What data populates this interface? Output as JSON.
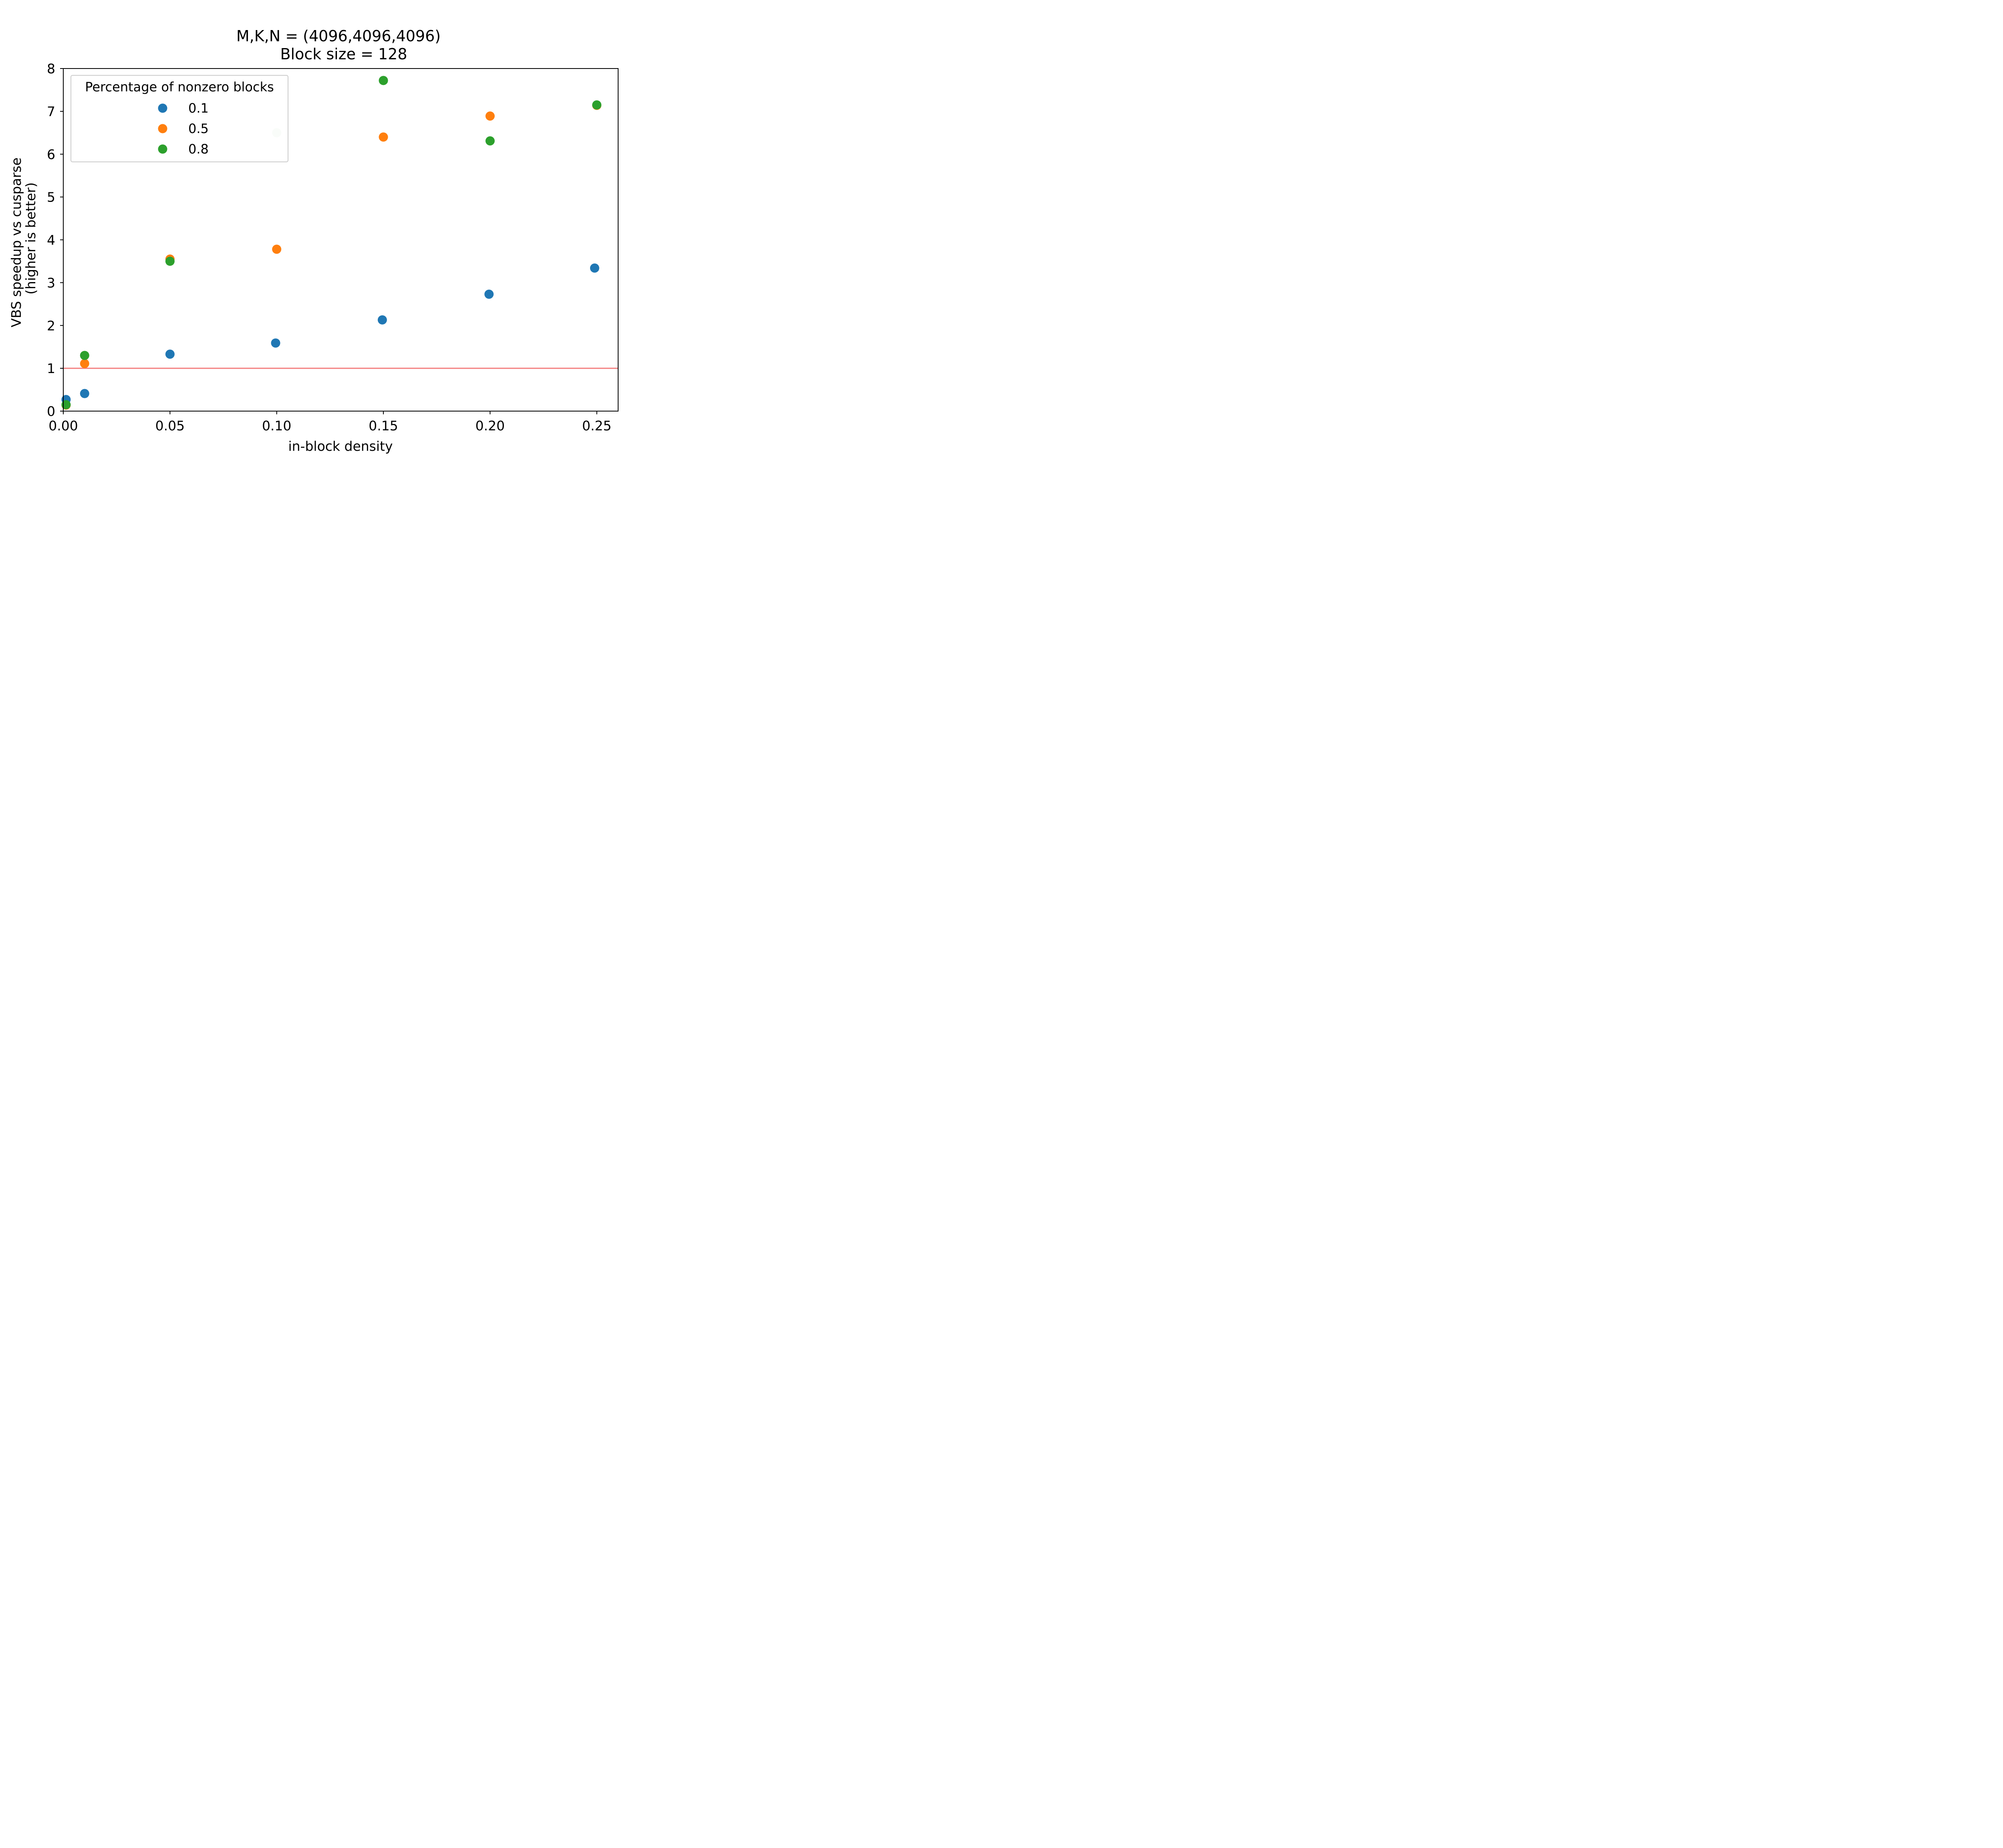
{
  "chart_data": {
    "type": "scatter",
    "title": "M,K,N = (4096,4096,4096)",
    "subtitle": "Block size = 128",
    "xlabel": "in-block density",
    "ylabel": "VBS speedup vs cusparse",
    "ylabel2": "(higher is better)",
    "xlim": [
      0.0,
      0.26
    ],
    "ylim": [
      0,
      8
    ],
    "xticks": [
      "0.00",
      "0.05",
      "0.10",
      "0.15",
      "0.20",
      "0.25"
    ],
    "xtick_values": [
      0.0,
      0.05,
      0.1,
      0.15,
      0.2,
      0.25
    ],
    "yticks": [
      "0",
      "1",
      "2",
      "3",
      "4",
      "5",
      "6",
      "7",
      "8"
    ],
    "ytick_values": [
      0,
      1,
      2,
      3,
      4,
      5,
      6,
      7,
      8
    ],
    "grid": false,
    "legend": {
      "title": "Percentage of nonzero blocks",
      "placement": "top-left"
    },
    "reference_line": {
      "y": 1,
      "color": "#f47e7e"
    },
    "series": [
      {
        "name": "0.1",
        "color": "#1f77b4",
        "points": [
          {
            "x": 0.0013,
            "y": 0.27
          },
          {
            "x": 0.01,
            "y": 0.41
          },
          {
            "x": 0.05,
            "y": 1.33
          },
          {
            "x": 0.0995,
            "y": 1.59
          },
          {
            "x": 0.1495,
            "y": 2.13
          },
          {
            "x": 0.1995,
            "y": 2.73
          },
          {
            "x": 0.249,
            "y": 3.34
          }
        ]
      },
      {
        "name": "0.5",
        "color": "#ff7f0e",
        "points": [
          {
            "x": 0.0013,
            "y": 0.14
          },
          {
            "x": 0.01,
            "y": 1.11
          },
          {
            "x": 0.05,
            "y": 3.55
          },
          {
            "x": 0.1,
            "y": 3.78
          },
          {
            "x": 0.15,
            "y": 6.4
          },
          {
            "x": 0.2,
            "y": 6.89
          },
          {
            "x": 0.25,
            "y": 7.14
          }
        ]
      },
      {
        "name": "0.8",
        "color": "#2ca02c",
        "points": [
          {
            "x": 0.0013,
            "y": 0.15
          },
          {
            "x": 0.01,
            "y": 1.3
          },
          {
            "x": 0.05,
            "y": 3.5
          },
          {
            "x": 0.1,
            "y": 6.5,
            "faded": true
          },
          {
            "x": 0.15,
            "y": 7.72
          },
          {
            "x": 0.2,
            "y": 6.31
          },
          {
            "x": 0.25,
            "y": 7.15
          }
        ]
      }
    ]
  }
}
